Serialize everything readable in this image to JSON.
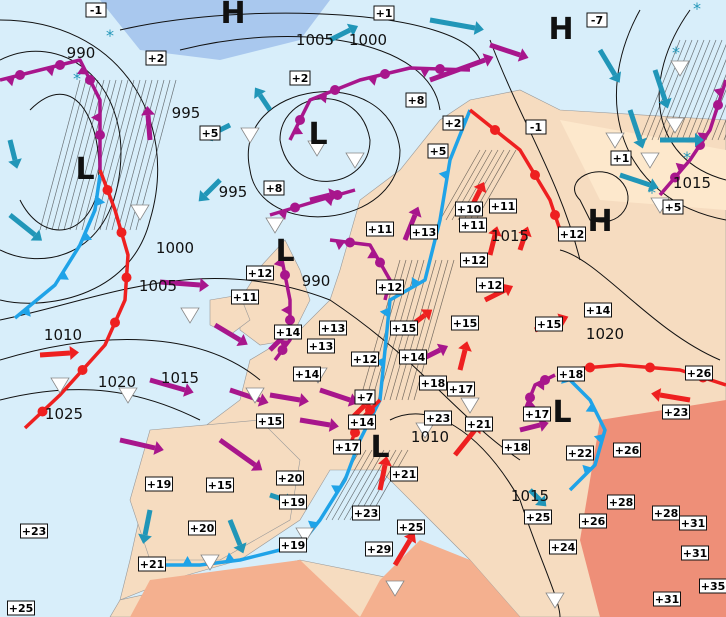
{
  "map": {
    "colors": {
      "sea": "#d8eefa",
      "land": "#f6dcc0",
      "warm_land": "#f4b08f",
      "hot_land": "#ee8f78",
      "cold_area": "#a9c8ee",
      "cold_front": "#1fa3e8",
      "warm_front": "#ee2020",
      "occluded_front": "#a8168c",
      "cold_arrow": "#2196b8",
      "warm_arrow": "#ee2020",
      "mild_arrow": "#a8168c"
    },
    "pressure_centers": [
      "H",
      "H",
      "L",
      "L",
      "L",
      "H",
      "L",
      "L"
    ],
    "isobar_labels": [
      "990",
      "1005",
      "1000",
      "995",
      "995",
      "1000",
      "1005",
      "990",
      "1010",
      "1020",
      "1015",
      "1025",
      "1015",
      "1020",
      "1010",
      "1015",
      "1015"
    ],
    "temperatures": [
      "-1",
      "+1",
      "-7",
      "+2",
      "+2",
      "+8",
      "+5",
      "+2",
      "-1",
      "+5",
      "+1",
      "+8",
      "+5",
      "+10",
      "+11",
      "+11",
      "+13",
      "+11",
      "+12",
      "+12",
      "+12",
      "+12",
      "+12",
      "+11",
      "+14",
      "+13",
      "+15",
      "+15",
      "+15",
      "+14",
      "+13",
      "+14",
      "+12",
      "+14",
      "+18",
      "+17",
      "+18",
      "+26",
      "+7",
      "+23",
      "+17",
      "+15",
      "+14",
      "+23",
      "+21",
      "+17",
      "+18",
      "+22",
      "+26",
      "+20",
      "+21",
      "+19",
      "+15",
      "+19",
      "+23",
      "+28",
      "+28",
      "+31",
      "+25",
      "+26",
      "+20",
      "+25",
      "+23",
      "+19",
      "+29",
      "+24",
      "+31",
      "+21",
      "+35",
      "+31",
      "+25"
    ],
    "symbols": {
      "shower_icon": "triangle-down",
      "snow_icon": "asterisk"
    }
  }
}
